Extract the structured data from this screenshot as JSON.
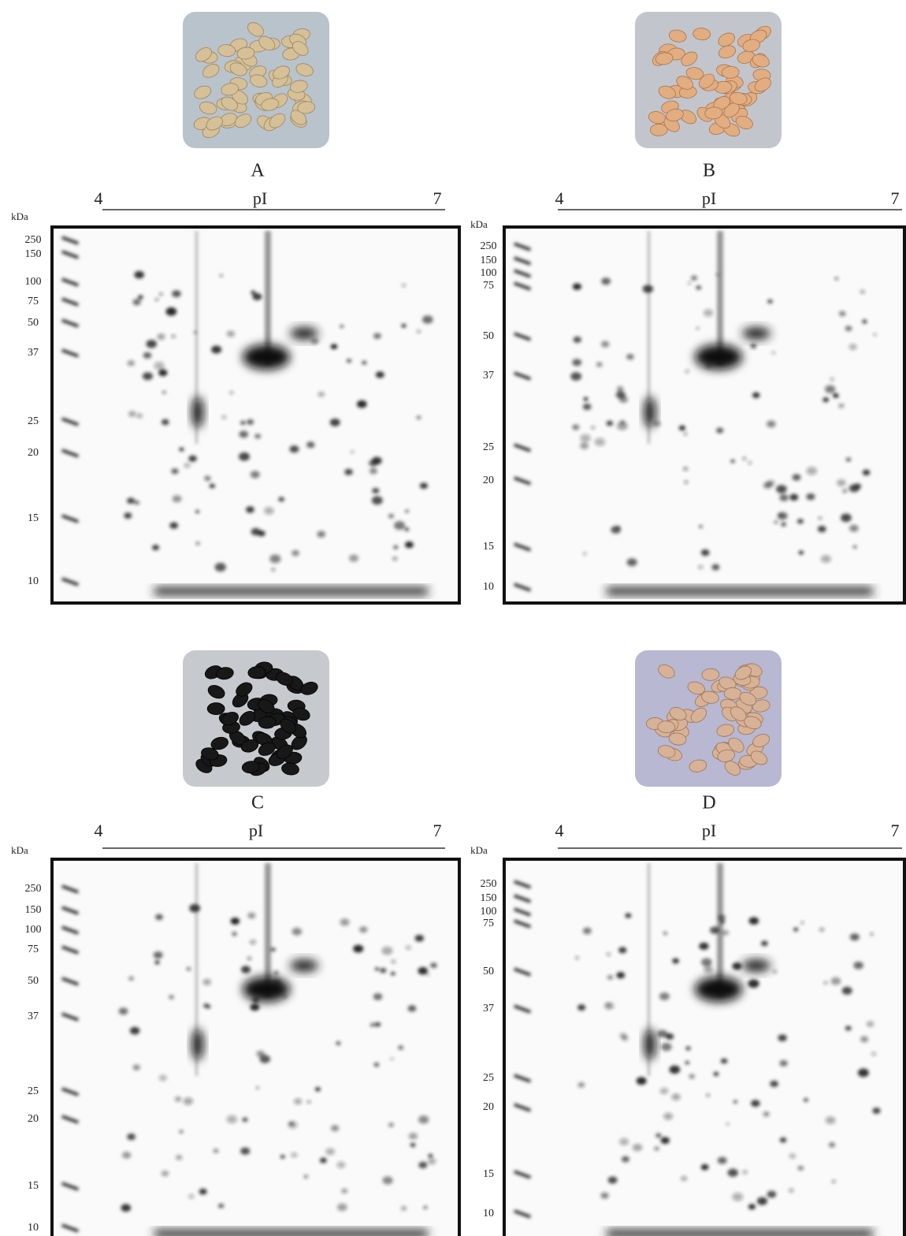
{
  "panels": [
    {
      "label": "A",
      "pI_start": "4",
      "pI_title": "pI",
      "pI_end": "7",
      "unit": "kDa",
      "markers": [
        250,
        150,
        100,
        75,
        50,
        37,
        25,
        20,
        15,
        10
      ]
    },
    {
      "label": "B",
      "pI_start": "4",
      "pI_title": "pI",
      "pI_end": "7",
      "unit": "kDa",
      "markers": [
        250,
        150,
        100,
        75,
        50,
        37,
        25,
        20,
        15,
        10
      ]
    },
    {
      "label": "C",
      "pI_start": "4",
      "pI_title": "pI",
      "pI_end": "7",
      "unit": "kDa",
      "markers": [
        250,
        150,
        100,
        75,
        50,
        37,
        25,
        20,
        15,
        10
      ]
    },
    {
      "label": "D",
      "pI_start": "4",
      "pI_title": "pI",
      "pI_end": "7",
      "unit": "kDa",
      "markers": [
        250,
        150,
        100,
        75,
        50,
        37,
        25,
        20,
        15,
        10
      ]
    }
  ]
}
